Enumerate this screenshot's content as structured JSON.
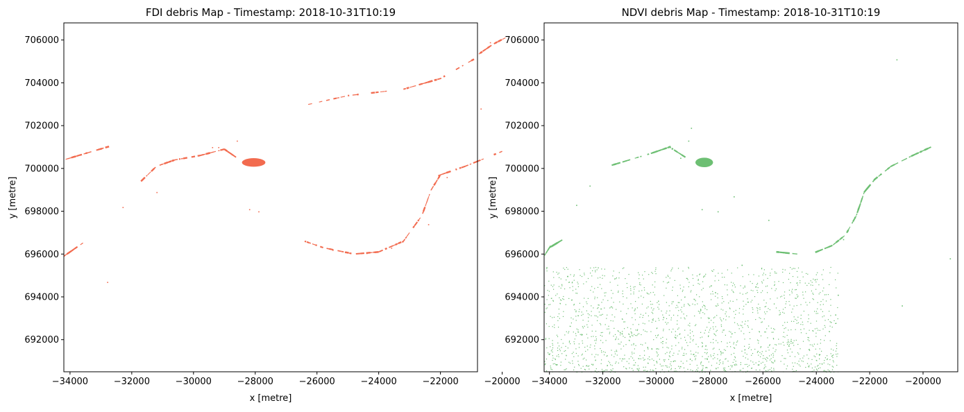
{
  "chart_data": [
    {
      "type": "scatter",
      "title": "FDI debris Map - Timestamp: 2018-10-31T10:19",
      "xlabel": "x [metre]",
      "ylabel": "y [metre]",
      "xlim": [
        -34200,
        -20800
      ],
      "ylim": [
        690500,
        706800
      ],
      "x_ticks": [
        -34000,
        -32000,
        -30000,
        -28000,
        -26000,
        -24000,
        -22000,
        -20000
      ],
      "y_ticks": [
        692000,
        694000,
        696000,
        698000,
        700000,
        702000,
        704000,
        706000
      ],
      "x_tick_labels": [
        "−34000",
        "−32000",
        "−30000",
        "−28000",
        "−26000",
        "−24000",
        "−22000",
        "−20000"
      ],
      "y_tick_labels": [
        "692000",
        "694000",
        "696000",
        "698000",
        "700000",
        "702000",
        "704000",
        "706000"
      ],
      "color": "#f26b4f",
      "grid": false,
      "blob": {
        "x": -28050,
        "y": 700280,
        "rx": 380,
        "ry": 200
      },
      "tracks": [
        [
          [
            -26400,
            702950
          ],
          [
            -25000,
            703400
          ],
          [
            -23200,
            703700
          ],
          [
            -22000,
            704200
          ],
          [
            -20800,
            705200
          ]
        ],
        [
          [
            -20800,
            705300
          ],
          [
            -20300,
            705800
          ],
          [
            -19900,
            706100
          ]
        ],
        [
          [
            -34200,
            700400
          ],
          [
            -33500,
            700700
          ],
          [
            -32800,
            701000
          ]
        ],
        [
          [
            -31700,
            699400
          ],
          [
            -31200,
            700100
          ],
          [
            -30600,
            700400
          ],
          [
            -29800,
            700600
          ],
          [
            -29000,
            700900
          ],
          [
            -28600,
            700500
          ]
        ],
        [
          [
            -20000,
            700800
          ],
          [
            -21200,
            700100
          ],
          [
            -22000,
            699700
          ],
          [
            -22300,
            699000
          ],
          [
            -22600,
            697800
          ],
          [
            -23200,
            696600
          ],
          [
            -24000,
            696100
          ],
          [
            -24800,
            696000
          ],
          [
            -25800,
            696300
          ],
          [
            -26400,
            696600
          ]
        ],
        [
          [
            -34200,
            695900
          ],
          [
            -34000,
            696100
          ],
          [
            -33600,
            696500
          ]
        ]
      ],
      "points": [
        [
          -28600,
          701300
        ],
        [
          -29400,
          701000
        ],
        [
          -29200,
          701000
        ],
        [
          -28200,
          698100
        ],
        [
          -27900,
          698000
        ],
        [
          -32800,
          694700
        ],
        [
          -32300,
          698200
        ],
        [
          -31200,
          698900
        ],
        [
          -22400,
          697400
        ],
        [
          -20700,
          702800
        ],
        [
          -25500,
          696200
        ],
        [
          -24400,
          696050
        ],
        [
          -23600,
          696300
        ],
        [
          -21800,
          699600
        ],
        [
          -20400,
          705900
        ]
      ]
    },
    {
      "type": "scatter",
      "title": "NDVI debris Map - Timestamp: 2018-10-31T10:19",
      "xlabel": "x [metre]",
      "ylabel": "y [metre]",
      "xlim": [
        -34200,
        -18700
      ],
      "ylim": [
        690500,
        706800
      ],
      "x_ticks": [
        -34000,
        -32000,
        -30000,
        -28000,
        -26000,
        -24000,
        -22000,
        -20000
      ],
      "y_ticks": [
        692000,
        694000,
        696000,
        698000,
        700000,
        702000,
        704000,
        706000
      ],
      "x_tick_labels": [
        "−34000",
        "−32000",
        "−30000",
        "−28000",
        "−26000",
        "−24000",
        "−22000",
        "−20000"
      ],
      "y_tick_labels": [
        "692000",
        "694000",
        "696000",
        "698000",
        "700000",
        "702000",
        "704000",
        "706000"
      ],
      "color": "#6dbf73",
      "grid": false,
      "blob": {
        "x": -28200,
        "y": 700280,
        "rx": 330,
        "ry": 220
      },
      "tracks": [
        [
          [
            -31800,
            700100
          ],
          [
            -31000,
            700400
          ],
          [
            -30200,
            700700
          ],
          [
            -29500,
            701000
          ],
          [
            -29000,
            700600
          ]
        ],
        [
          [
            -19700,
            701000
          ],
          [
            -20400,
            700600
          ],
          [
            -21200,
            700100
          ],
          [
            -21800,
            699500
          ],
          [
            -22200,
            698900
          ],
          [
            -22500,
            697800
          ],
          [
            -22900,
            696900
          ],
          [
            -23400,
            696400
          ],
          [
            -24000,
            696100
          ]
        ],
        [
          [
            -34200,
            695900
          ],
          [
            -34000,
            696300
          ],
          [
            -33600,
            696600
          ]
        ],
        [
          [
            -25500,
            696100
          ],
          [
            -24700,
            696000
          ]
        ]
      ],
      "points": [
        [
          -28800,
          701300
        ],
        [
          -28700,
          701900
        ],
        [
          -29100,
          700500
        ],
        [
          -28300,
          698100
        ],
        [
          -27700,
          698000
        ],
        [
          -21000,
          705100
        ],
        [
          -23000,
          696700
        ],
        [
          -19000,
          695800
        ],
        [
          -20800,
          693600
        ],
        [
          -23200,
          694100
        ],
        [
          -26800,
          695500
        ],
        [
          -25800,
          697600
        ],
        [
          -27100,
          698700
        ],
        [
          -33000,
          698300
        ],
        [
          -32500,
          699200
        ]
      ],
      "scatter_region": {
        "x": [
          -34200,
          -23200
        ],
        "y": [
          690500,
          695400
        ],
        "count": 1700,
        "seed": 7
      }
    }
  ]
}
